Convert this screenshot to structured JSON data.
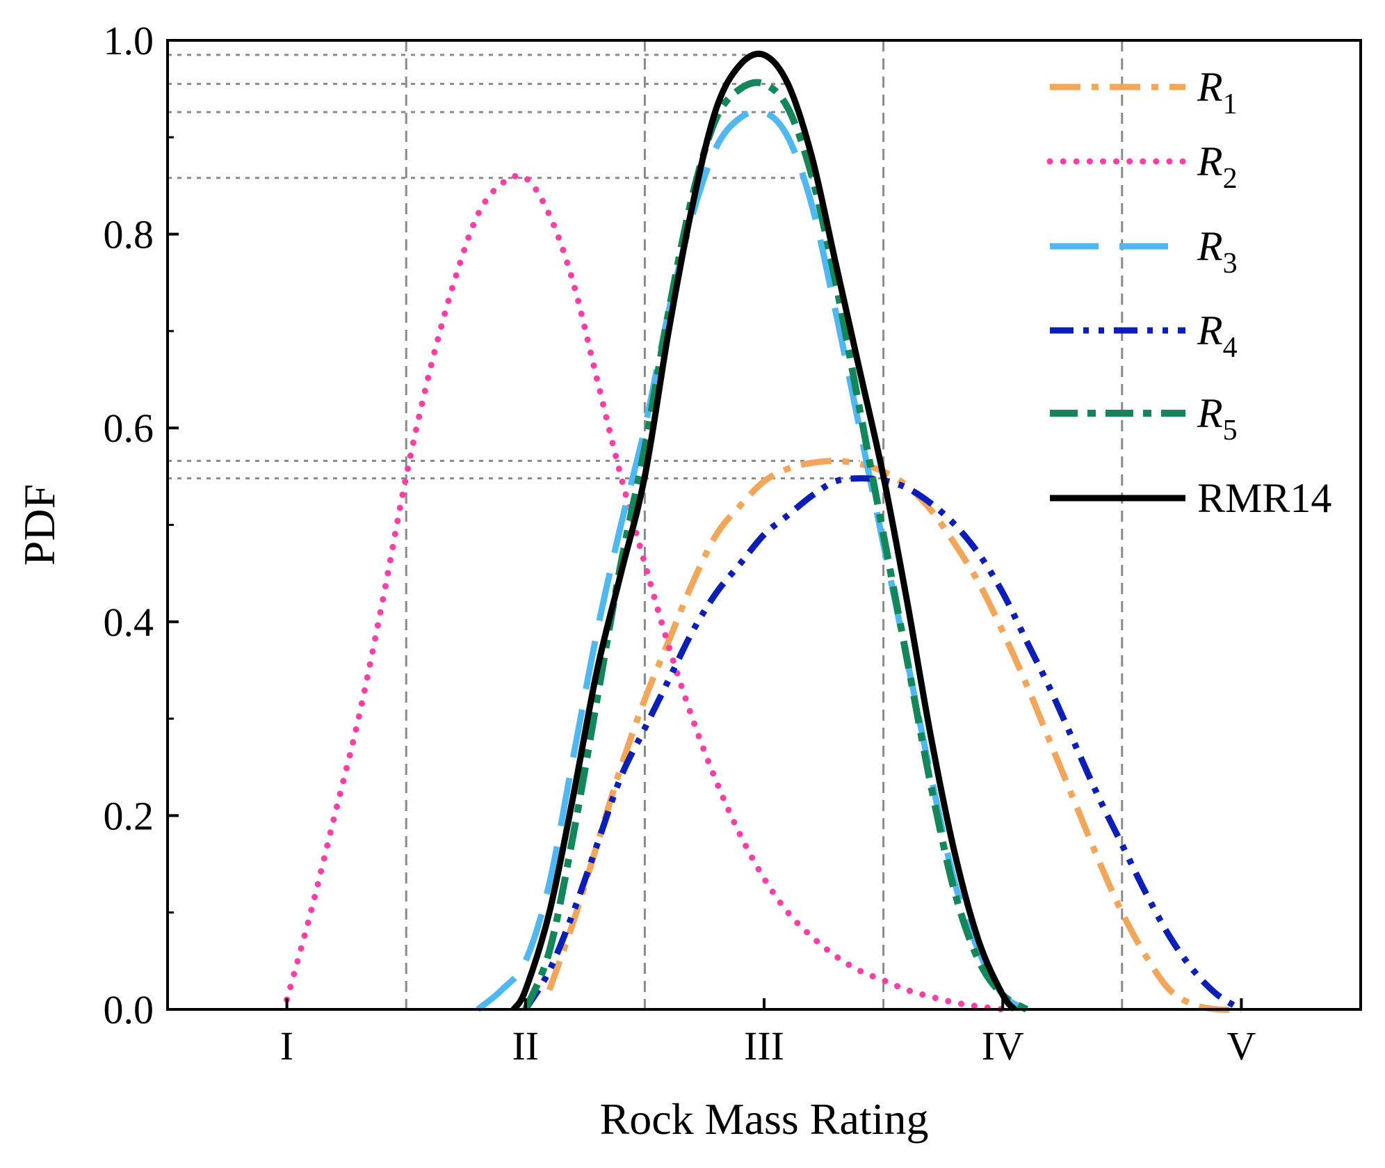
{
  "chart_data": {
    "type": "line",
    "xlabel": "Rock Mass Rating",
    "ylabel": "PDF",
    "xlim": [
      0.5,
      5.5
    ],
    "ylim": [
      0,
      1.0
    ],
    "x_ticks": [
      {
        "value": 1,
        "label": "I"
      },
      {
        "value": 2,
        "label": "II"
      },
      {
        "value": 3,
        "label": "III"
      },
      {
        "value": 4,
        "label": "IV"
      },
      {
        "value": 5,
        "label": "V"
      }
    ],
    "y_ticks": [
      {
        "value": 0.0,
        "label": "0.0"
      },
      {
        "value": 0.2,
        "label": "0.2"
      },
      {
        "value": 0.4,
        "label": "0.4"
      },
      {
        "value": 0.6,
        "label": "0.6"
      },
      {
        "value": 0.8,
        "label": "0.8"
      },
      {
        "value": 1.0,
        "label": "1.0"
      }
    ],
    "class_boundaries": [
      1.5,
      2.5,
      3.5,
      4.5
    ],
    "reference_levels": [
      0.985,
      0.955,
      0.926,
      0.858,
      0.566,
      0.548
    ],
    "series": [
      {
        "name": "R1",
        "label_main": "R",
        "label_sub": "1",
        "color": "#f2a65a",
        "style": "dashdot-long",
        "x": [
          2.1,
          2.2,
          2.3,
          2.4,
          2.5,
          2.6,
          2.7,
          2.8,
          2.9,
          3.0,
          3.1,
          3.2,
          3.3,
          3.4,
          3.5,
          3.6,
          3.7,
          3.8,
          3.9,
          4.0,
          4.1,
          4.2,
          4.3,
          4.4,
          4.5,
          4.6,
          4.7,
          4.8,
          4.9,
          5.0
        ],
        "y": [
          0.02,
          0.09,
          0.17,
          0.25,
          0.32,
          0.38,
          0.44,
          0.49,
          0.52,
          0.545,
          0.558,
          0.564,
          0.566,
          0.563,
          0.555,
          0.54,
          0.515,
          0.48,
          0.44,
          0.39,
          0.335,
          0.275,
          0.215,
          0.155,
          0.1,
          0.055,
          0.02,
          0.005,
          0.0,
          0.0
        ]
      },
      {
        "name": "R2",
        "label_main": "R",
        "label_sub": "2",
        "color": "#ff3fa4",
        "style": "dotted",
        "x": [
          1.0,
          1.1,
          1.2,
          1.3,
          1.4,
          1.5,
          1.6,
          1.7,
          1.8,
          1.9,
          2.0,
          2.1,
          2.2,
          2.3,
          2.4,
          2.5,
          2.6,
          2.7,
          2.8,
          2.9,
          3.0,
          3.1,
          3.2,
          3.3,
          3.4,
          3.5,
          3.6,
          3.7,
          3.8,
          3.9,
          4.0
        ],
        "y": [
          0.01,
          0.1,
          0.2,
          0.3,
          0.42,
          0.55,
          0.66,
          0.75,
          0.82,
          0.852,
          0.858,
          0.82,
          0.75,
          0.65,
          0.55,
          0.46,
          0.375,
          0.3,
          0.235,
          0.18,
          0.135,
          0.1,
          0.075,
          0.055,
          0.04,
          0.03,
          0.02,
          0.013,
          0.007,
          0.003,
          0.0
        ]
      },
      {
        "name": "R3",
        "label_main": "R",
        "label_sub": "3",
        "color": "#4fb8f2",
        "style": "dashed-long",
        "x": [
          1.8,
          1.9,
          2.0,
          2.1,
          2.2,
          2.3,
          2.4,
          2.5,
          2.6,
          2.7,
          2.8,
          2.9,
          3.0,
          3.1,
          3.2,
          3.3,
          3.4,
          3.5,
          3.6,
          3.7,
          3.8,
          3.9,
          4.0,
          4.1
        ],
        "y": [
          0.0,
          0.02,
          0.05,
          0.13,
          0.26,
          0.39,
          0.5,
          0.6,
          0.72,
          0.82,
          0.89,
          0.92,
          0.926,
          0.9,
          0.83,
          0.72,
          0.6,
          0.48,
          0.36,
          0.24,
          0.13,
          0.06,
          0.015,
          0.0
        ]
      },
      {
        "name": "R4",
        "label_main": "R",
        "label_sub": "4",
        "color": "#0b1fb8",
        "style": "dashdotdot",
        "x": [
          2.0,
          2.1,
          2.2,
          2.3,
          2.4,
          2.5,
          2.6,
          2.7,
          2.8,
          2.9,
          3.0,
          3.1,
          3.2,
          3.3,
          3.4,
          3.5,
          3.6,
          3.7,
          3.8,
          3.9,
          4.0,
          4.1,
          4.2,
          4.3,
          4.4,
          4.5,
          4.6,
          4.7,
          4.8,
          4.9,
          5.0
        ],
        "y": [
          0.0,
          0.04,
          0.1,
          0.17,
          0.24,
          0.29,
          0.34,
          0.39,
          0.43,
          0.46,
          0.49,
          0.51,
          0.53,
          0.545,
          0.548,
          0.546,
          0.538,
          0.522,
          0.5,
          0.47,
          0.43,
          0.38,
          0.33,
          0.275,
          0.22,
          0.17,
          0.12,
          0.075,
          0.04,
          0.015,
          0.0
        ]
      },
      {
        "name": "R5",
        "label_main": "R",
        "label_sub": "5",
        "color": "#14875a",
        "style": "dashdot-heavy",
        "x": [
          2.0,
          2.1,
          2.2,
          2.3,
          2.4,
          2.5,
          2.6,
          2.7,
          2.8,
          2.9,
          3.0,
          3.1,
          3.2,
          3.3,
          3.4,
          3.5,
          3.6,
          3.7,
          3.8,
          3.9,
          4.0,
          4.1
        ],
        "y": [
          0.0,
          0.06,
          0.18,
          0.32,
          0.46,
          0.58,
          0.72,
          0.84,
          0.92,
          0.95,
          0.955,
          0.93,
          0.86,
          0.75,
          0.62,
          0.49,
          0.36,
          0.23,
          0.12,
          0.05,
          0.015,
          0.0
        ]
      },
      {
        "name": "RMR14",
        "label_main": "RMR14",
        "label_sub": "",
        "color": "#000000",
        "style": "solid",
        "x": [
          1.95,
          2.0,
          2.1,
          2.2,
          2.3,
          2.4,
          2.5,
          2.6,
          2.7,
          2.8,
          2.9,
          3.0,
          3.1,
          3.2,
          3.3,
          3.4,
          3.5,
          3.6,
          3.7,
          3.8,
          3.9,
          4.0,
          4.05
        ],
        "y": [
          0.0,
          0.02,
          0.1,
          0.22,
          0.35,
          0.45,
          0.55,
          0.7,
          0.83,
          0.93,
          0.975,
          0.985,
          0.955,
          0.88,
          0.77,
          0.66,
          0.55,
          0.42,
          0.28,
          0.16,
          0.07,
          0.015,
          0.0
        ]
      }
    ]
  }
}
